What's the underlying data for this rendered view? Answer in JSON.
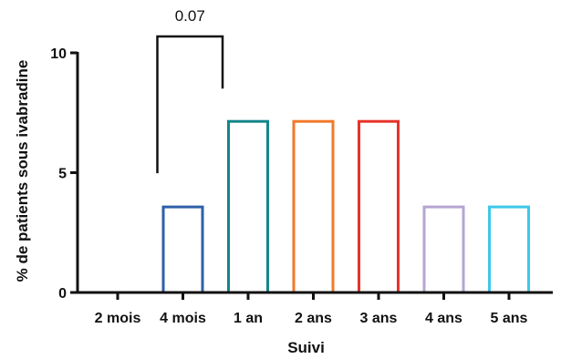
{
  "chart_data": {
    "type": "bar",
    "xlabel": "Suivi",
    "ylabel": "% de patients sous ivabradine",
    "categories": [
      "2 mois",
      "4 mois",
      "1 an",
      "2 ans",
      "3 ans",
      "4 ans",
      "5 ans"
    ],
    "values": [
      0,
      3.57,
      7.14,
      7.14,
      7.14,
      3.57,
      3.57
    ],
    "bar_colors": [
      "#000000",
      "#2f5fa8",
      "#13868a",
      "#f07a2a",
      "#e6332a",
      "#b4a6d2",
      "#3ec8ea"
    ],
    "ylim": [
      0,
      10
    ],
    "yticks": [
      "0",
      "5",
      "10"
    ],
    "grid": false,
    "legend": "none",
    "annotation": {
      "label": "0.07",
      "from_category": "4 mois",
      "to_category": "1 an"
    }
  }
}
